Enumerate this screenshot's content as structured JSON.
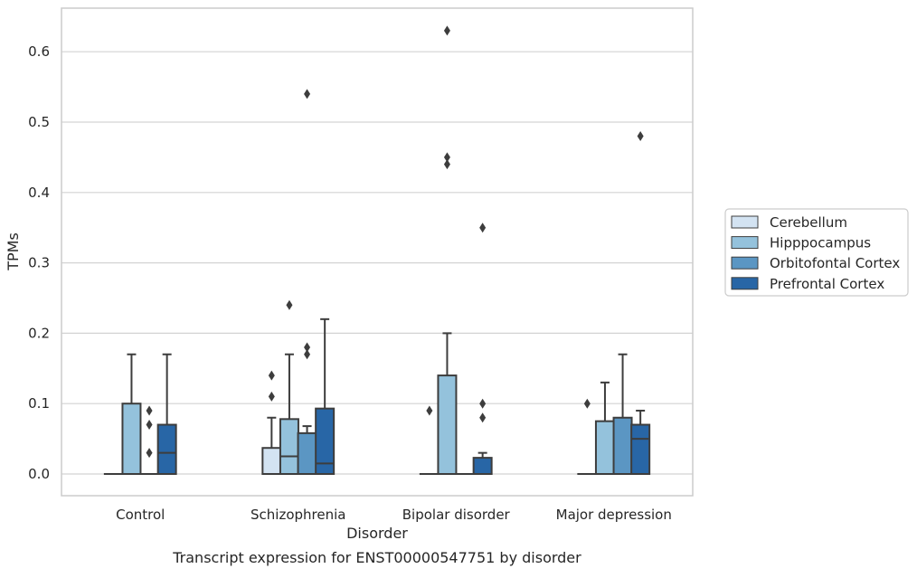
{
  "chart_data": {
    "type": "boxplot",
    "title": "",
    "caption": "Transcript expression for ENST00000547751 by disorder",
    "xlabel": "Disorder",
    "ylabel": "TPMs",
    "ylim": [
      -0.03,
      0.66
    ],
    "yticks": [
      0.0,
      0.1,
      0.2,
      0.3,
      0.4,
      0.5,
      0.6
    ],
    "ytick_labels": [
      "0.0",
      "0.1",
      "0.2",
      "0.3",
      "0.4",
      "0.5",
      "0.6"
    ],
    "grid": "horizontal",
    "legend_position": "right",
    "categories": [
      "Control",
      "Schizophrenia",
      "Bipolar disorder",
      "Major depression"
    ],
    "series": [
      {
        "name": "Cerebellum",
        "color": "#d3e3f2",
        "boxes": [
          {
            "q1": 0.0,
            "median": 0.0,
            "q3": 0.0,
            "whisker_low": 0.0,
            "whisker_high": 0.0,
            "outliers": []
          },
          {
            "q1": 0.0,
            "median": 0.0,
            "q3": 0.037,
            "whisker_low": 0.0,
            "whisker_high": 0.08,
            "outliers": [
              0.11,
              0.14
            ]
          },
          {
            "q1": 0.0,
            "median": 0.0,
            "q3": 0.0,
            "whisker_low": 0.0,
            "whisker_high": 0.0,
            "outliers": [
              0.09
            ]
          },
          {
            "q1": 0.0,
            "median": 0.0,
            "q3": 0.0,
            "whisker_low": 0.0,
            "whisker_high": 0.0,
            "outliers": [
              0.1
            ]
          }
        ]
      },
      {
        "name": "Hipppocampus",
        "color": "#94c2dc",
        "boxes": [
          {
            "q1": 0.0,
            "median": 0.0,
            "q3": 0.1,
            "whisker_low": 0.0,
            "whisker_high": 0.17,
            "outliers": []
          },
          {
            "q1": 0.0,
            "median": 0.025,
            "q3": 0.078,
            "whisker_low": 0.0,
            "whisker_high": 0.17,
            "outliers": [
              0.24
            ]
          },
          {
            "q1": 0.0,
            "median": 0.0,
            "q3": 0.14,
            "whisker_low": 0.0,
            "whisker_high": 0.2,
            "outliers": [
              0.44,
              0.45,
              0.63
            ]
          },
          {
            "q1": 0.0,
            "median": 0.0,
            "q3": 0.075,
            "whisker_low": 0.0,
            "whisker_high": 0.13,
            "outliers": []
          }
        ]
      },
      {
        "name": "Orbitofontal Cortex",
        "color": "#5b96c3",
        "boxes": [
          {
            "q1": 0.0,
            "median": 0.0,
            "q3": 0.0,
            "whisker_low": 0.0,
            "whisker_high": 0.0,
            "outliers": [
              0.03,
              0.07,
              0.09
            ]
          },
          {
            "q1": 0.0,
            "median": 0.0,
            "q3": 0.058,
            "whisker_low": 0.0,
            "whisker_high": 0.068,
            "outliers": [
              0.17,
              0.18,
              0.54
            ]
          },
          {
            "q1": 0.0,
            "median": 0.0,
            "q3": 0.0,
            "whisker_low": 0.0,
            "whisker_high": 0.0,
            "outliers": []
          },
          {
            "q1": 0.0,
            "median": 0.0,
            "q3": 0.08,
            "whisker_low": 0.0,
            "whisker_high": 0.17,
            "outliers": []
          }
        ]
      },
      {
        "name": "Prefrontal Cortex",
        "color": "#2866a6",
        "boxes": [
          {
            "q1": 0.0,
            "median": 0.03,
            "q3": 0.07,
            "whisker_low": 0.0,
            "whisker_high": 0.17,
            "outliers": []
          },
          {
            "q1": 0.0,
            "median": 0.015,
            "q3": 0.093,
            "whisker_low": 0.0,
            "whisker_high": 0.22,
            "outliers": []
          },
          {
            "q1": 0.0,
            "median": 0.0,
            "q3": 0.023,
            "whisker_low": 0.0,
            "whisker_high": 0.03,
            "outliers": [
              0.08,
              0.1,
              0.35
            ]
          },
          {
            "q1": 0.0,
            "median": 0.05,
            "q3": 0.07,
            "whisker_low": 0.0,
            "whisker_high": 0.09,
            "outliers": [
              0.48
            ]
          }
        ]
      }
    ]
  }
}
